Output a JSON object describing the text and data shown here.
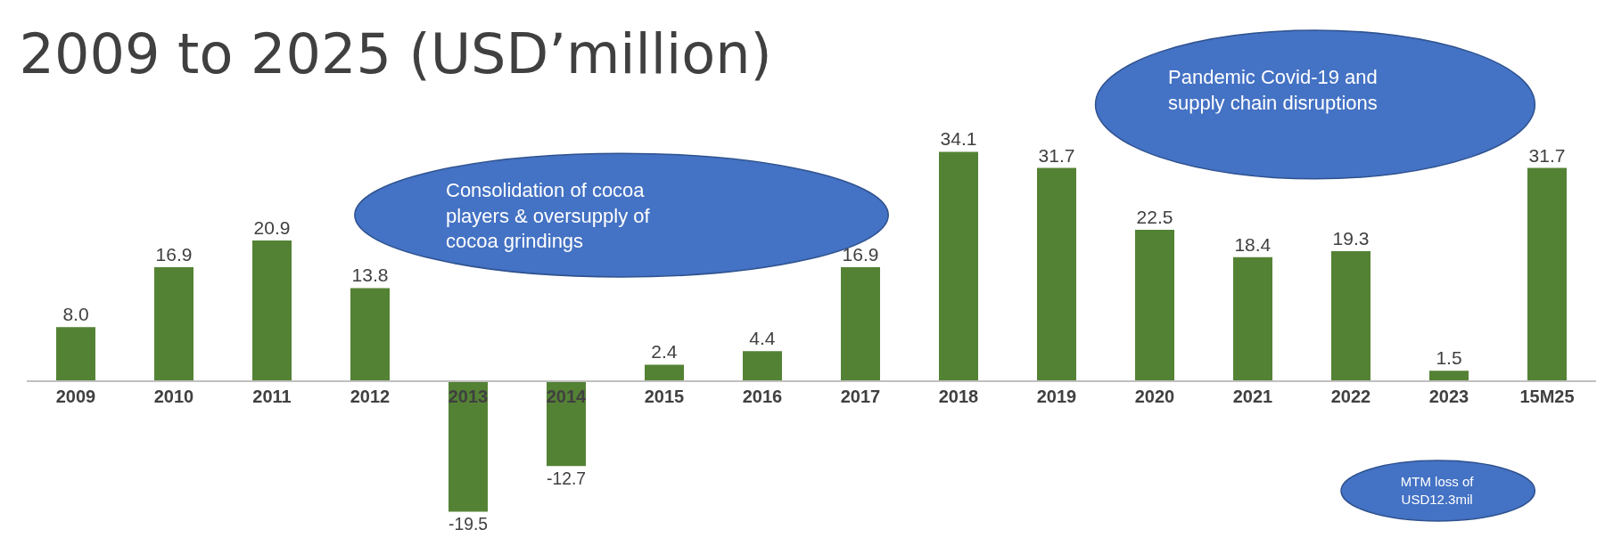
{
  "chart_data": {
    "type": "bar",
    "title": "2009 to 2025 (USD’million)",
    "categories": [
      "2009",
      "2010",
      "2011",
      "2012",
      "2013",
      "2014",
      "2015",
      "2016",
      "2017",
      "2018",
      "2019",
      "2020",
      "2021",
      "2022",
      "2023",
      "15M25"
    ],
    "values": [
      8.0,
      16.9,
      20.9,
      13.8,
      -19.5,
      -12.7,
      2.4,
      4.4,
      16.9,
      34.1,
      31.7,
      22.5,
      18.4,
      19.3,
      1.5,
      31.7
    ],
    "value_labels": [
      "8.0",
      "16.9",
      "20.9",
      "13.8",
      "-19.5",
      "-12.7",
      "2.4",
      "4.4",
      "16.9",
      "34.1",
      "31.7",
      "22.5",
      "18.4",
      "19.3",
      "1.5",
      "31.7"
    ],
    "color": "#548235",
    "tick_labels": "x",
    "grid": false,
    "legend": false,
    "annotations": [
      "Consolidation of cocoa players & oversupply of cocoa grindings",
      "Pandemic Covid-19 and supply chain disruptions",
      "MTM loss of USD12.3mil"
    ]
  }
}
